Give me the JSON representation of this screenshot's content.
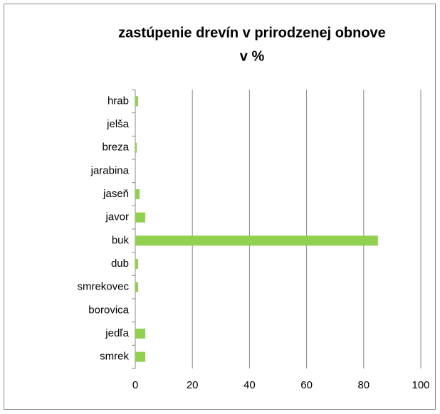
{
  "chart_data": {
    "type": "barh",
    "title": [
      "zastúpenie drevín v prirodzenej obnove",
      "v %"
    ],
    "categories": [
      "hrab",
      "jelša",
      "breza",
      "jarabina",
      "jaseň",
      "javor",
      "buk",
      "dub",
      "smrekovec",
      "borovica",
      "jedľa",
      "smrek"
    ],
    "values": [
      1,
      0,
      0.5,
      0,
      1.5,
      3.5,
      85,
      1,
      1,
      0,
      3.5,
      3.5
    ],
    "color": "#92d050",
    "xlim": [
      0,
      100
    ],
    "xticks": [
      0,
      20,
      40,
      60,
      80,
      100
    ],
    "grid": true
  }
}
